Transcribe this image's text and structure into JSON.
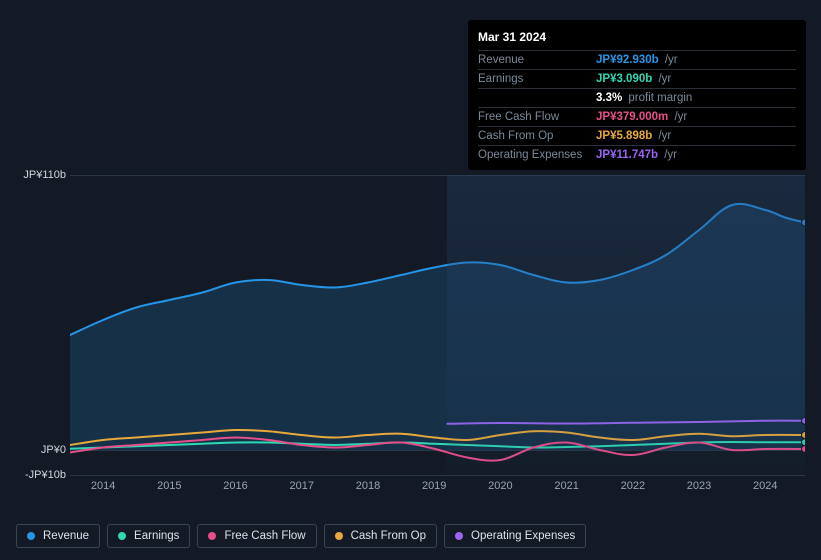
{
  "tooltip": {
    "date": "Mar 31 2024",
    "rows": [
      {
        "label": "Revenue",
        "value": "JP¥92.930b",
        "suffix": "/yr",
        "color": "#2695e8"
      },
      {
        "label": "Earnings",
        "value": "JP¥3.090b",
        "suffix": "/yr",
        "color": "#2fd8b3"
      },
      {
        "label": "",
        "value": "3.3%",
        "suffix": "profit margin",
        "color": "#ffffff"
      },
      {
        "label": "Free Cash Flow",
        "value": "JP¥379.000m",
        "suffix": "/yr",
        "color": "#e84e8a"
      },
      {
        "label": "Cash From Op",
        "value": "JP¥5.898b",
        "suffix": "/yr",
        "color": "#e8a83c"
      },
      {
        "label": "Operating Expenses",
        "value": "JP¥11.747b",
        "suffix": "/yr",
        "color": "#9965f4"
      }
    ]
  },
  "chart": {
    "type": "line",
    "background_color": "#131a25",
    "grid_color": "#2a3646",
    "axis_label_color": "#9aa5b4",
    "ylim": [
      -10,
      110
    ],
    "yticks": [
      {
        "v": 110,
        "label": "JP¥110b"
      },
      {
        "v": 0,
        "label": "JP¥0"
      },
      {
        "v": -10,
        "label": "-JP¥10b"
      }
    ],
    "xlim": [
      2013.5,
      2024.6
    ],
    "xticks": [
      2014,
      2015,
      2016,
      2017,
      2018,
      2019,
      2020,
      2021,
      2022,
      2023,
      2024
    ],
    "highlight_from_x": 2019.2,
    "line_width": 2,
    "series": [
      {
        "name": "Revenue",
        "color": "#2695e8",
        "fill_to_zero": true,
        "fill_opacity": 0.18,
        "points": [
          [
            2013.5,
            46
          ],
          [
            2014,
            52
          ],
          [
            2014.5,
            57
          ],
          [
            2015,
            60
          ],
          [
            2015.5,
            63
          ],
          [
            2016,
            67
          ],
          [
            2016.5,
            68
          ],
          [
            2017,
            66
          ],
          [
            2017.5,
            65
          ],
          [
            2018,
            67
          ],
          [
            2018.5,
            70
          ],
          [
            2019,
            73
          ],
          [
            2019.5,
            75
          ],
          [
            2020,
            74
          ],
          [
            2020.5,
            70
          ],
          [
            2021,
            67
          ],
          [
            2021.5,
            68
          ],
          [
            2022,
            72
          ],
          [
            2022.5,
            78
          ],
          [
            2023,
            88
          ],
          [
            2023.5,
            98
          ],
          [
            2024,
            96
          ],
          [
            2024.3,
            93
          ],
          [
            2024.6,
            91
          ]
        ]
      },
      {
        "name": "Operating Expenses",
        "color": "#9965f4",
        "points": [
          [
            2019.2,
            10.5
          ],
          [
            2020,
            10.8
          ],
          [
            2021,
            10.6
          ],
          [
            2022,
            10.9
          ],
          [
            2023,
            11.2
          ],
          [
            2024,
            11.7
          ],
          [
            2024.6,
            11.7
          ]
        ]
      },
      {
        "name": "Cash From Op",
        "color": "#e8a83c",
        "points": [
          [
            2013.5,
            2
          ],
          [
            2014,
            4
          ],
          [
            2014.5,
            5
          ],
          [
            2015,
            6
          ],
          [
            2015.5,
            7
          ],
          [
            2016,
            8
          ],
          [
            2016.5,
            7.5
          ],
          [
            2017,
            6
          ],
          [
            2017.5,
            5
          ],
          [
            2018,
            6
          ],
          [
            2018.5,
            6.5
          ],
          [
            2019,
            5
          ],
          [
            2019.5,
            4
          ],
          [
            2020,
            6
          ],
          [
            2020.5,
            7.5
          ],
          [
            2021,
            7
          ],
          [
            2021.5,
            5
          ],
          [
            2022,
            4
          ],
          [
            2022.5,
            5.5
          ],
          [
            2023,
            6.5
          ],
          [
            2023.5,
            5.5
          ],
          [
            2024,
            6
          ],
          [
            2024.6,
            6
          ]
        ]
      },
      {
        "name": "Earnings",
        "color": "#2fd8b3",
        "points": [
          [
            2013.5,
            0.5
          ],
          [
            2014,
            1
          ],
          [
            2014.5,
            1.5
          ],
          [
            2015,
            2
          ],
          [
            2015.5,
            2.5
          ],
          [
            2016,
            3
          ],
          [
            2016.5,
            3
          ],
          [
            2017,
            2.5
          ],
          [
            2017.5,
            2
          ],
          [
            2018,
            2.5
          ],
          [
            2018.5,
            3
          ],
          [
            2019,
            2.5
          ],
          [
            2019.5,
            2
          ],
          [
            2020,
            1.5
          ],
          [
            2020.5,
            1
          ],
          [
            2021,
            1.2
          ],
          [
            2021.5,
            1.5
          ],
          [
            2022,
            2
          ],
          [
            2022.5,
            2.5
          ],
          [
            2023,
            3
          ],
          [
            2023.5,
            3.2
          ],
          [
            2024,
            3.1
          ],
          [
            2024.6,
            3.1
          ]
        ]
      },
      {
        "name": "Free Cash Flow",
        "color": "#e84e8a",
        "points": [
          [
            2013.5,
            -1
          ],
          [
            2014,
            1
          ],
          [
            2014.5,
            2
          ],
          [
            2015,
            3
          ],
          [
            2015.5,
            4
          ],
          [
            2016,
            5
          ],
          [
            2016.5,
            4
          ],
          [
            2017,
            2
          ],
          [
            2017.5,
            1
          ],
          [
            2018,
            2
          ],
          [
            2018.5,
            3
          ],
          [
            2019,
            0.5
          ],
          [
            2019.5,
            -3
          ],
          [
            2020,
            -4
          ],
          [
            2020.5,
            1
          ],
          [
            2021,
            3
          ],
          [
            2021.5,
            0
          ],
          [
            2022,
            -2
          ],
          [
            2022.5,
            1
          ],
          [
            2023,
            3
          ],
          [
            2023.5,
            0
          ],
          [
            2024,
            0.4
          ],
          [
            2024.6,
            0.4
          ]
        ]
      }
    ],
    "end_markers": [
      {
        "color": "#2695e8",
        "x": 2024.6,
        "y": 91
      },
      {
        "color": "#9965f4",
        "x": 2024.6,
        "y": 11.7
      },
      {
        "color": "#e8a83c",
        "x": 2024.6,
        "y": 6
      },
      {
        "color": "#2fd8b3",
        "x": 2024.6,
        "y": 3.1
      },
      {
        "color": "#e84e8a",
        "x": 2024.6,
        "y": 0.4
      }
    ]
  },
  "legend": [
    {
      "label": "Revenue",
      "color": "#2695e8"
    },
    {
      "label": "Earnings",
      "color": "#2fd8b3"
    },
    {
      "label": "Free Cash Flow",
      "color": "#e84e8a"
    },
    {
      "label": "Cash From Op",
      "color": "#e8a83c"
    },
    {
      "label": "Operating Expenses",
      "color": "#9965f4"
    }
  ]
}
